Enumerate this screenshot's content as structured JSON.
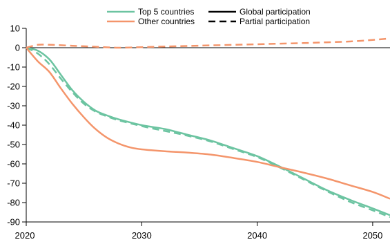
{
  "chart_data": {
    "type": "line",
    "title": "",
    "xlabel": "",
    "ylabel": "",
    "xlim": [
      2020,
      2051.5
    ],
    "ylim": [
      -90,
      10
    ],
    "x_ticks": [
      2020,
      2030,
      2040,
      2050
    ],
    "y_ticks": [
      10,
      0,
      -10,
      -20,
      -30,
      -40,
      -50,
      -60,
      -70,
      -80,
      -90
    ],
    "x_tick_labels": [
      "2020",
      "2030",
      "2040",
      "2050"
    ],
    "y_tick_labels": [
      "10",
      "0",
      "-10",
      "-20",
      "-30",
      "-40",
      "-50",
      "-60",
      "-70",
      "-80",
      "-90"
    ],
    "zero_line": true,
    "grid": false,
    "legend": {
      "placement": "top",
      "color_entries": [
        {
          "label": "Top 5 countries",
          "color": "#6cc4a1"
        },
        {
          "label": "Other countries",
          "color": "#f4956b"
        }
      ],
      "style_entries": [
        {
          "label": "Global participation",
          "dash": "solid"
        },
        {
          "label": "Partial participation",
          "dash": "dashed"
        }
      ]
    },
    "series": [
      {
        "group": "Top 5 countries",
        "style": "Global participation",
        "color": "#6cc4a1",
        "dash": "solid",
        "x": [
          2020,
          2021,
          2022,
          2023,
          2024,
          2025,
          2026,
          2027,
          2028,
          2030,
          2032,
          2034,
          2036,
          2038,
          2040,
          2042,
          2044,
          2046,
          2048,
          2050,
          2051.5
        ],
        "y": [
          0,
          -1.5,
          -6,
          -14,
          -22,
          -28,
          -32.5,
          -35,
          -37,
          -40,
          -42,
          -45,
          -48,
          -52,
          -56,
          -61.5,
          -67.5,
          -73.5,
          -78.5,
          -83,
          -86.5
        ]
      },
      {
        "group": "Top 5 countries",
        "style": "Partial participation",
        "color": "#6cc4a1",
        "dash": "dashed",
        "x": [
          2020,
          2021,
          2022,
          2023,
          2024,
          2025,
          2026,
          2027,
          2028,
          2030,
          2032,
          2034,
          2036,
          2038,
          2040,
          2042,
          2044,
          2046,
          2048,
          2050,
          2051.5
        ],
        "y": [
          0,
          -3,
          -8.5,
          -16,
          -23,
          -29,
          -33,
          -35.5,
          -37.5,
          -40.5,
          -43,
          -45.5,
          -48.5,
          -52.5,
          -56.5,
          -62,
          -68,
          -74,
          -79.5,
          -84,
          -87.5
        ]
      },
      {
        "group": "Other countries",
        "style": "Global participation",
        "color": "#f4956b",
        "dash": "solid",
        "x": [
          2020,
          2021,
          2022,
          2023,
          2024,
          2025,
          2026,
          2027,
          2028,
          2029,
          2030,
          2032,
          2034,
          2036,
          2038,
          2040,
          2042,
          2044,
          2046,
          2048,
          2050,
          2051.5
        ],
        "y": [
          0,
          -7,
          -12.5,
          -21,
          -29,
          -36,
          -42,
          -46.5,
          -49.5,
          -51.5,
          -52.5,
          -53.5,
          -54.2,
          -55.2,
          -57,
          -59,
          -61.8,
          -64.5,
          -67.5,
          -71,
          -74.5,
          -78
        ]
      },
      {
        "group": "Other countries",
        "style": "Partial participation",
        "color": "#f4956b",
        "dash": "dashed",
        "x": [
          2020,
          2021,
          2022,
          2024,
          2026,
          2028,
          2030,
          2032,
          2034,
          2036,
          2038,
          2040,
          2042,
          2044,
          2046,
          2048,
          2050,
          2051.5
        ],
        "y": [
          0,
          1.5,
          1.5,
          1,
          0.5,
          0,
          0.3,
          0.6,
          0.9,
          1.2,
          1.5,
          1.8,
          2.1,
          2.4,
          2.8,
          3.2,
          4,
          4.8
        ]
      }
    ]
  }
}
